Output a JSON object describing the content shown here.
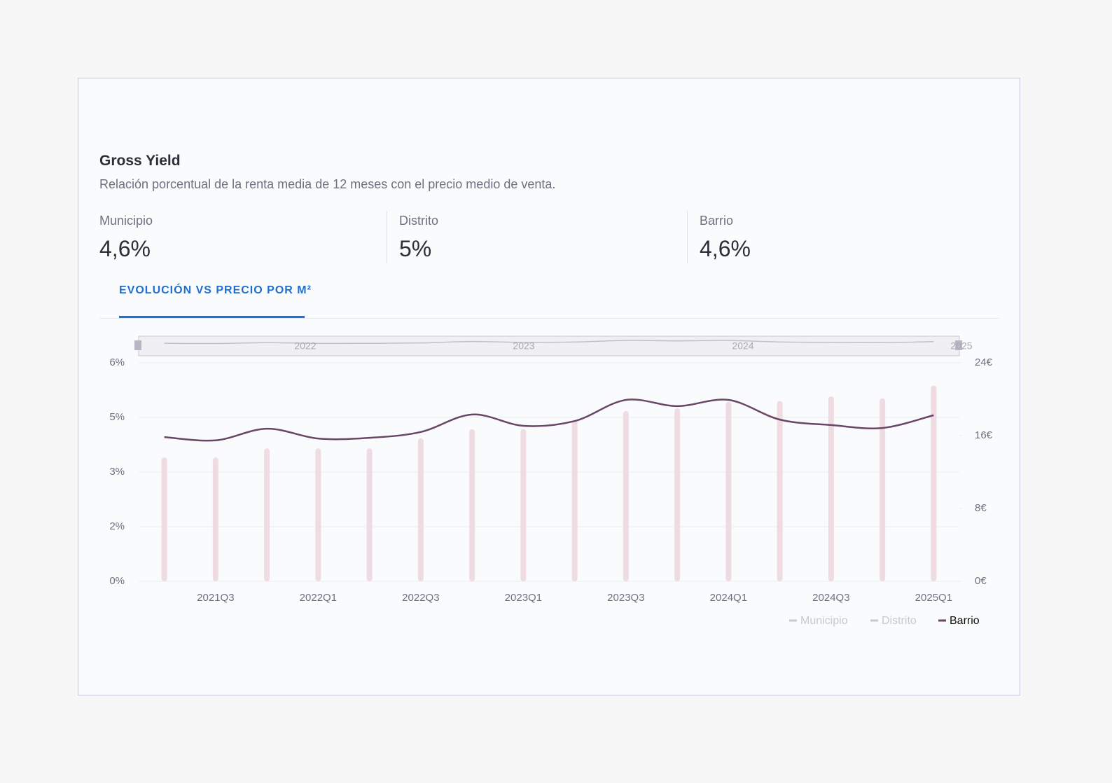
{
  "header": {
    "title": "Gross Yield",
    "subtitle": "Relación porcentual de la renta media de 12 meses con el precio medio de venta."
  },
  "stats": [
    {
      "label": "Municipio",
      "value": "4,6%"
    },
    {
      "label": "Distrito",
      "value": "5%"
    },
    {
      "label": "Barrio",
      "value": "4,6%"
    }
  ],
  "tab": "EVOLUCIÓN VS PRECIO POR M²",
  "chart_data": {
    "type": "bar-line",
    "categories": [
      null,
      "2021Q3",
      null,
      "2022Q1",
      null,
      "2022Q3",
      null,
      "2023Q1",
      null,
      "2023Q3",
      null,
      "2024Q1",
      null,
      "2024Q3",
      null,
      "2025Q1"
    ],
    "series": [
      {
        "color": "#efdbe2",
        "axis": "y2",
        "values": [
          13.6,
          13.6,
          14.6,
          14.6,
          14.6,
          15.7,
          16.7,
          16.7,
          17.7,
          18.7,
          19.0,
          19.7,
          19.8,
          20.3,
          20.1,
          21.5
        ]
      },
      {
        "name": "Barrio",
        "color": "#6b4566",
        "values": [
          3.96,
          3.87,
          4.19,
          3.92,
          3.94,
          4.1,
          4.58,
          4.27,
          4.4,
          4.98,
          4.81,
          4.98,
          4.44,
          4.29,
          4.21,
          4.56
        ]
      }
    ],
    "legend": [
      {
        "name": "Municipio",
        "color": "#c8c8d0",
        "active": false
      },
      {
        "name": "Distrito",
        "color": "#c8c8d0",
        "active": false
      },
      {
        "name": "Barrio",
        "color": "#6b4566",
        "active": true
      }
    ],
    "ylim": [
      0,
      6
    ],
    "yticks": [
      {
        "value": 0,
        "label": "0%"
      },
      {
        "value": 1.5,
        "label": "2%"
      },
      {
        "value": 3,
        "label": "3%"
      },
      {
        "value": 4.5,
        "label": "5%"
      },
      {
        "value": 6,
        "label": "6%"
      }
    ],
    "y2lim": [
      0,
      24
    ],
    "y2ticks": [
      {
        "value": 0,
        "label": "0€"
      },
      {
        "value": 8,
        "label": "8€"
      },
      {
        "value": 16,
        "label": "16€"
      },
      {
        "value": 24,
        "label": "24€"
      }
    ],
    "grid": true,
    "navigator_labels": [
      "2022",
      "2023",
      "2024",
      "2025"
    ]
  }
}
